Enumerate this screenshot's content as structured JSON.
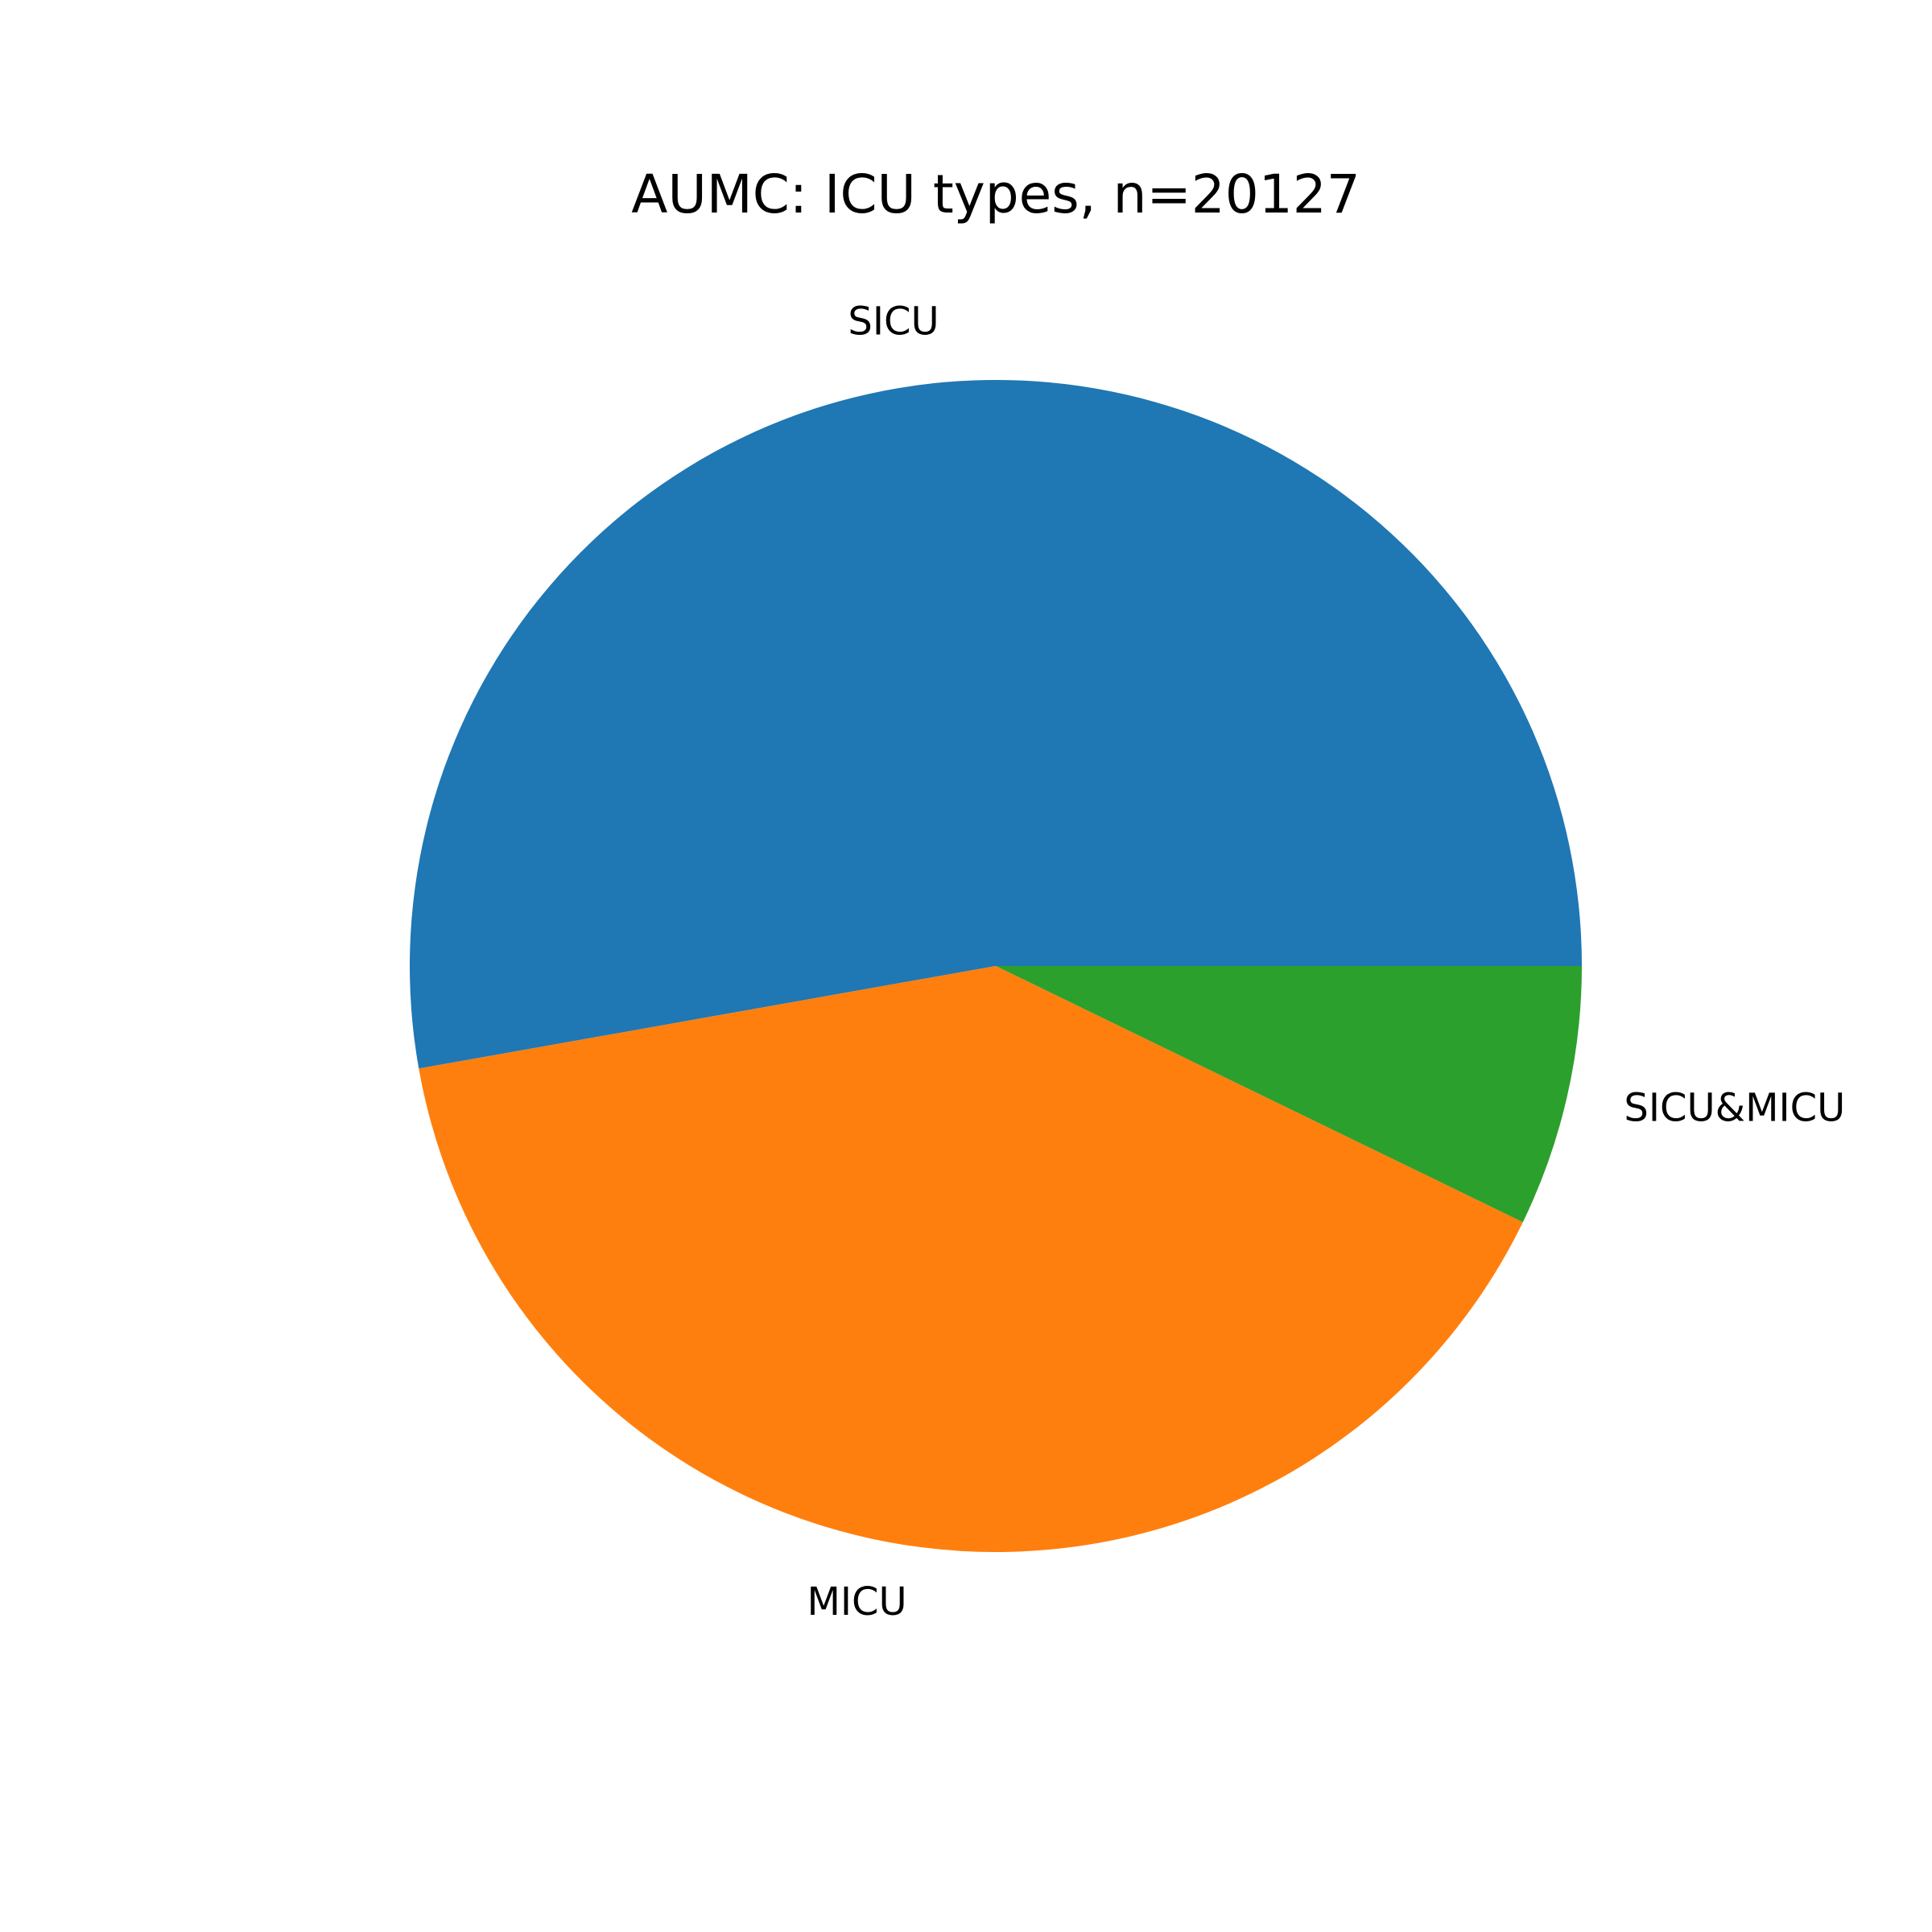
{
  "chart_data": {
    "type": "pie",
    "title": "AUMC: ICU types, n=20127",
    "start_angle_deg": 0,
    "direction": "counterclockwise",
    "slices": [
      {
        "label": "SICU",
        "value": 52.8,
        "color": "#1f77b4"
      },
      {
        "label": "MICU",
        "value": 40.0,
        "color": "#ff7f0e"
      },
      {
        "label": "SICU&MICU",
        "value": 7.2,
        "color": "#2ca02c"
      }
    ]
  }
}
